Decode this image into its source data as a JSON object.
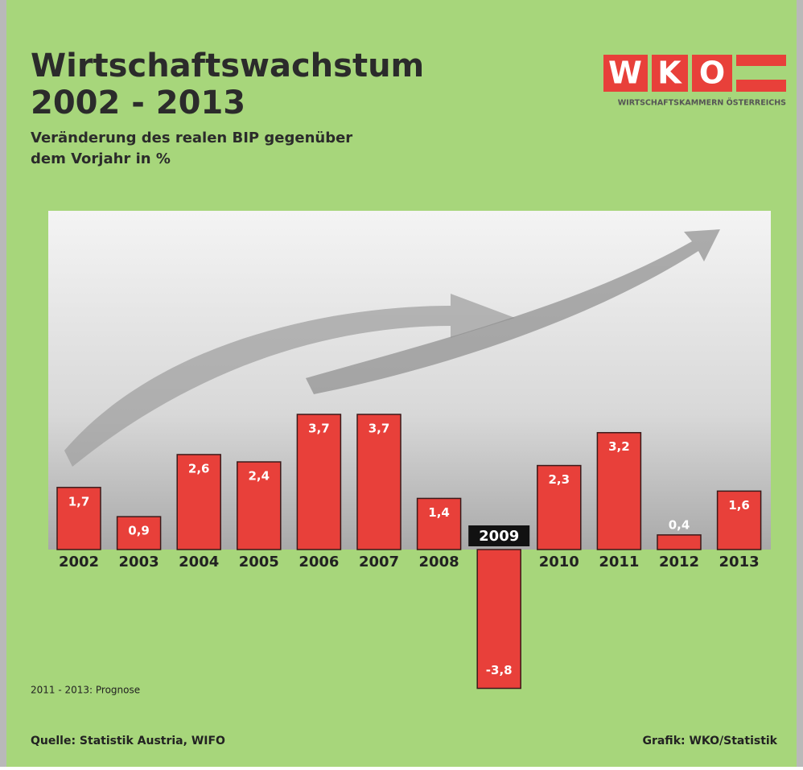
{
  "chart_data": {
    "type": "bar",
    "title": [
      "Wirtschaftswachstum",
      "2002 - 2013"
    ],
    "subtitle": [
      "Veränderung des realen BIP gegenüber",
      "dem Vorjahr in %"
    ],
    "categories": [
      "2002",
      "2003",
      "2004",
      "2005",
      "2006",
      "2007",
      "2008",
      "2009",
      "2010",
      "2011",
      "2012",
      "2013"
    ],
    "values": [
      1.7,
      0.9,
      2.6,
      2.4,
      3.7,
      3.7,
      1.4,
      -3.8,
      2.3,
      3.2,
      0.4,
      1.6
    ],
    "value_labels": [
      "1,7",
      "0,9",
      "2,6",
      "2,4",
      "3,7",
      "3,7",
      "1,4",
      "-3,8",
      "2,3",
      "3,2",
      "0,4",
      "1,6"
    ],
    "color": "#e8403a",
    "note": "2011 - 2013: Prognose",
    "source": "Quelle: Statistik Austria, WIFO",
    "credit": "Grafik: WKO/Statistik",
    "logo": {
      "letters": [
        "W",
        "K",
        "O"
      ],
      "text": "WIRTSCHAFTSKAMMERN ÖSTERREICHS"
    }
  }
}
